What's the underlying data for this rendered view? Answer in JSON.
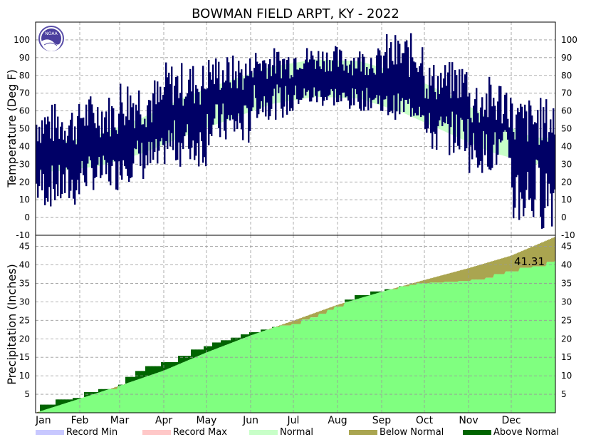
{
  "chart_data": {
    "title": "BOWMAN FIELD ARPT, KY - 2022",
    "type": "line",
    "panels": {
      "temperature": {
        "ylabel": "Temperature (Deg F)",
        "ylim": [
          -10,
          110
        ],
        "yticks": [
          -10,
          0,
          10,
          20,
          30,
          40,
          50,
          60,
          70,
          80,
          90,
          100
        ],
        "grid": true,
        "series": [
          {
            "name": "Normal",
            "type": "band",
            "normal_high": [
              42,
              47,
              56,
              68,
              77,
              85,
              89,
              88,
              81,
              70,
              56,
              45
            ],
            "normal_low": [
              26,
              29,
              36,
              46,
              55,
              64,
              68,
              67,
              59,
              48,
              37,
              30
            ]
          },
          {
            "name": "Observed",
            "type": "daily_range",
            "month_high_range": [
              [
                40,
                65
              ],
              [
                45,
                70
              ],
              [
                50,
                80
              ],
              [
                62,
                88
              ],
              [
                70,
                92
              ],
              [
                78,
                96
              ],
              [
                82,
                97
              ],
              [
                80,
                96
              ],
              [
                78,
                104
              ],
              [
                65,
                88
              ],
              [
                50,
                80
              ],
              [
                40,
                68
              ]
            ],
            "month_low_range": [
              [
                5,
                30
              ],
              [
                15,
                35
              ],
              [
                20,
                45
              ],
              [
                28,
                55
              ],
              [
                40,
                65
              ],
              [
                55,
                75
              ],
              [
                62,
                75
              ],
              [
                60,
                73
              ],
              [
                55,
                70
              ],
              [
                35,
                60
              ],
              [
                25,
                50
              ],
              [
                -7,
                35
              ]
            ]
          }
        ]
      },
      "precipitation": {
        "ylabel": "Precipitation (Inches)",
        "ylim": [
          0,
          48
        ],
        "yticks": [
          5,
          10,
          15,
          20,
          25,
          30,
          35,
          40,
          45
        ],
        "grid": true,
        "normal_cumulative": {
          "x": [
            0,
            31,
            59,
            90,
            120,
            151,
            181,
            212,
            243,
            273,
            304,
            334,
            365
          ],
          "y": [
            0,
            3.8,
            7.3,
            11.4,
            16.3,
            20.9,
            24.9,
            29.2,
            32.7,
            35.9,
            39.1,
            42.5,
            47.6
          ]
        },
        "observed_cumulative": {
          "x": [
            0,
            3,
            14,
            26,
            34,
            44,
            58,
            63,
            70,
            77,
            88,
            100,
            109,
            118,
            124,
            130,
            137,
            144,
            150,
            158,
            166,
            172,
            180,
            187,
            193,
            199,
            205,
            210,
            217,
            224,
            235,
            245,
            255,
            263,
            268,
            277,
            287,
            297,
            306,
            316,
            322,
            330,
            340,
            349,
            359,
            365
          ],
          "y": [
            0,
            2.2,
            3.6,
            4.0,
            5.6,
            6.4,
            7.6,
            9.7,
            11.3,
            12.6,
            13.7,
            15.4,
            17.1,
            18.0,
            19.0,
            19.6,
            20.3,
            21.2,
            21.8,
            22.5,
            23.2,
            23.6,
            24.0,
            25.2,
            25.8,
            26.8,
            27.8,
            28.7,
            30.6,
            31.8,
            32.8,
            33.4,
            34.2,
            34.6,
            35.0,
            35.2,
            35.4,
            35.6,
            36.0,
            36.5,
            37.5,
            38.2,
            39.2,
            39.6,
            40.8,
            41.31
          ]
        },
        "total_label": "41.31"
      }
    },
    "xaxis": {
      "months": [
        "Jan",
        "Feb",
        "Mar",
        "Apr",
        "May",
        "Jun",
        "Jul",
        "Aug",
        "Sep",
        "Oct",
        "Nov",
        "Dec"
      ],
      "month_start_days": [
        0,
        31,
        59,
        90,
        120,
        151,
        181,
        212,
        243,
        273,
        304,
        334
      ],
      "days_in_year": 365
    },
    "legend": {
      "position": "bottom",
      "entries": [
        {
          "label": "Record Min",
          "color": "#c8c8ff"
        },
        {
          "label": "Record Max",
          "color": "#ffc8c8"
        },
        {
          "label": "Normal",
          "color": "#c8ffc8"
        },
        {
          "label": "Below Normal",
          "color": "#aaa550"
        },
        {
          "label": "Above Normal",
          "color": "#006400"
        }
      ]
    },
    "colors": {
      "observed_temp": "#000066",
      "normal_temp_band": "#c8ffc8",
      "precip_normal_fill": "#80ff80",
      "precip_below": "#aaa550",
      "precip_above": "#006400",
      "grid": "#999999"
    },
    "logo": {
      "text": "NOAA"
    }
  }
}
